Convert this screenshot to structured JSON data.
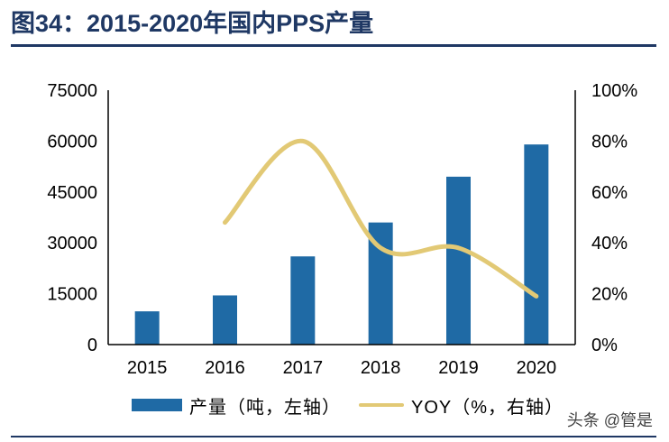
{
  "title": "图34：2015-2020年国内PPS产量",
  "watermark": "头条 @管是",
  "colors": {
    "bar": "#1f6aa5",
    "line": "#e2c975",
    "title": "#1f3864"
  },
  "chart_data": {
    "type": "bar+line",
    "categories": [
      "2015",
      "2016",
      "2017",
      "2018",
      "2019",
      "2020"
    ],
    "series": [
      {
        "name": "产量（吨，左轴）",
        "type": "bar",
        "axis": "left",
        "values": [
          9800,
          14500,
          26000,
          36000,
          49500,
          59000
        ]
      },
      {
        "name": "YOY（%，右轴）",
        "type": "line",
        "axis": "right",
        "values": [
          null,
          48,
          80,
          38,
          38,
          19
        ]
      }
    ],
    "left_axis": {
      "ylim": [
        0,
        75000
      ],
      "ticks": [
        "0",
        "15000",
        "30000",
        "45000",
        "60000",
        "75000"
      ]
    },
    "right_axis": {
      "ylim": [
        0,
        100
      ],
      "ticks": [
        "0%",
        "20%",
        "40%",
        "60%",
        "80%",
        "100%"
      ]
    },
    "grid": false,
    "legend": "bottom"
  }
}
